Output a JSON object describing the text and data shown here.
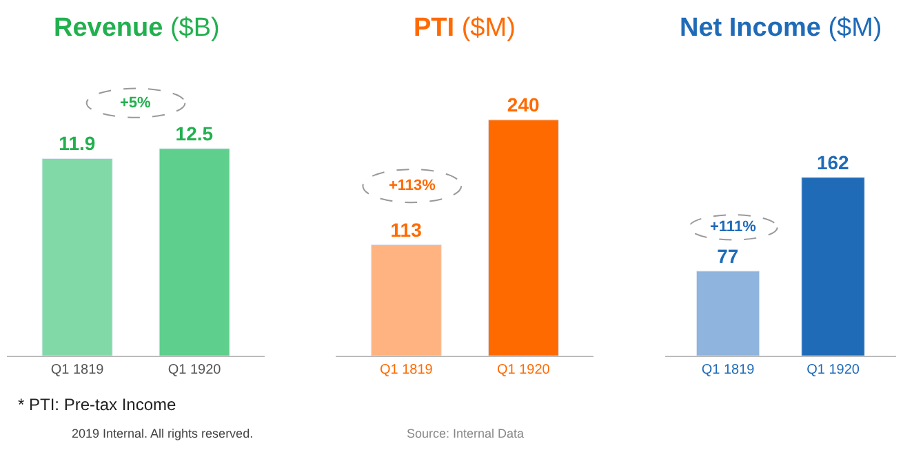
{
  "chart_data": [
    {
      "type": "bar",
      "title": "Revenue ($B)",
      "categories": [
        "Q1 1819",
        "Q1 1920"
      ],
      "values": [
        11.9,
        12.5
      ],
      "colors": [
        "#82d9a8",
        "#5fcf8e"
      ],
      "color": "#22b04f",
      "data_labels": true,
      "annotations": [
        "+5%",
        "* PTI: Pre-tax Income",
        "2019 Internal. All rights reserved."
      ]
    },
    {
      "type": "bar",
      "title": "PTI ($M)",
      "categories": [
        "Q1 1819",
        "Q1 1920"
      ],
      "values": [
        113,
        240
      ],
      "colors": [
        "#ffb380",
        "#ff6a00"
      ],
      "color": "#ff6a00",
      "data_labels": true,
      "annotations": [
        "+113%",
        "Source: Internal Data"
      ]
    },
    {
      "type": "bar",
      "title": "Net Income ($M)",
      "categories": [
        "Q1 1819",
        "Q1 1920"
      ],
      "values": [
        77,
        162
      ],
      "colors": [
        "#8fb4dd",
        "#1f6bb8"
      ],
      "color": "#1f6bb8",
      "data_labels": true,
      "annotations": [
        "+111%"
      ]
    }
  ]
}
